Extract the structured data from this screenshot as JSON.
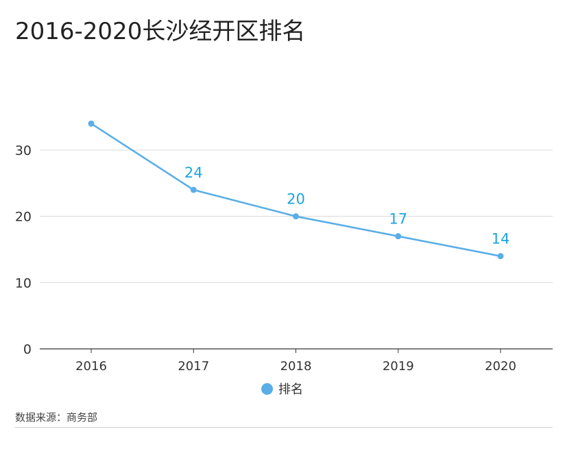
{
  "title": "2016-2020长沙经开区排名",
  "source": "数据来源：商务部",
  "colors": {
    "line": "#5aaee8",
    "label": "#1ba5e0",
    "grid": "#d9d9d9",
    "axis": "#333333"
  },
  "chart_data": {
    "type": "line",
    "categories": [
      "2016",
      "2017",
      "2018",
      "2019",
      "2020"
    ],
    "series": [
      {
        "name": "排名",
        "values": [
          34,
          24,
          20,
          17,
          14
        ],
        "labels": [
          "",
          "24",
          "20",
          "17",
          "14"
        ]
      }
    ],
    "yticks": [
      "0",
      "10",
      "20",
      "30"
    ],
    "ylim": [
      0,
      30
    ],
    "grid": true,
    "legend_position": "bottom-center"
  }
}
